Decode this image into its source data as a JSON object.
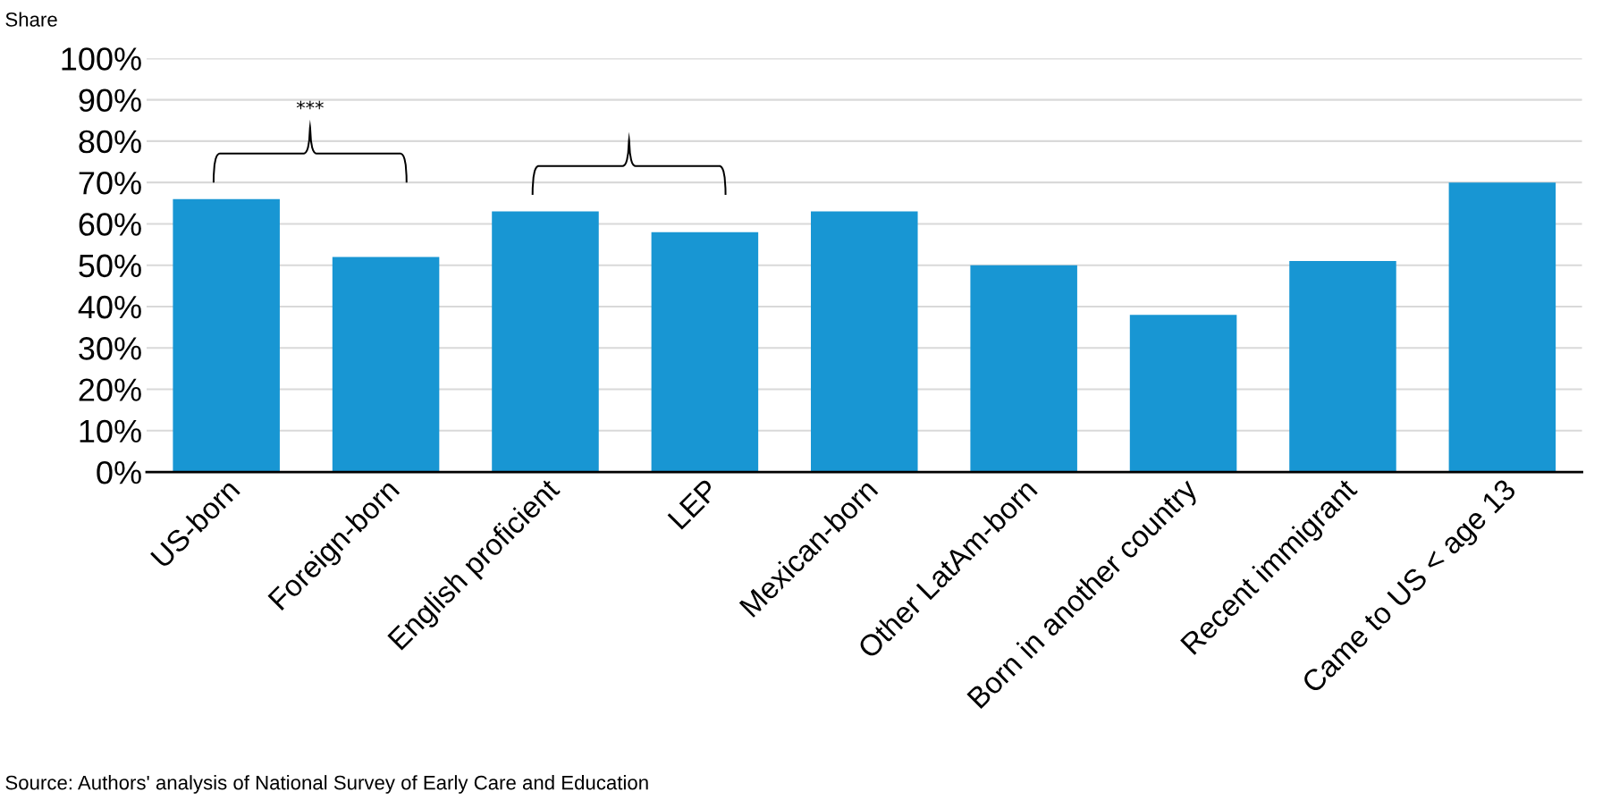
{
  "chart_data": {
    "type": "bar",
    "ylabel": "Share",
    "categories": [
      "US-born",
      "Foreign-born",
      "English proficient",
      "LEP",
      "Mexican-born",
      "Other LatAm-born",
      "Born in another country",
      "Recent immigrant",
      "Came to US < age 13"
    ],
    "values": [
      66,
      52,
      63,
      58,
      63,
      50,
      38,
      51,
      70
    ],
    "color": "#1896d3",
    "ylim": [
      0,
      100
    ],
    "yticks": [
      {
        "value": 0,
        "label": "0%"
      },
      {
        "value": 10,
        "label": "10%"
      },
      {
        "value": 20,
        "label": "20%"
      },
      {
        "value": 30,
        "label": "30%"
      },
      {
        "value": 40,
        "label": "40%"
      },
      {
        "value": 50,
        "label": "50%"
      },
      {
        "value": 60,
        "label": "60%"
      },
      {
        "value": 70,
        "label": "70%"
      },
      {
        "value": 80,
        "label": "80%"
      },
      {
        "value": 90,
        "label": "90%"
      },
      {
        "value": 100,
        "label": "100%"
      }
    ],
    "grid": "y",
    "annotations": [
      "***",
      "Source: Authors' analysis of National Survey of Early Care and Education"
    ]
  }
}
